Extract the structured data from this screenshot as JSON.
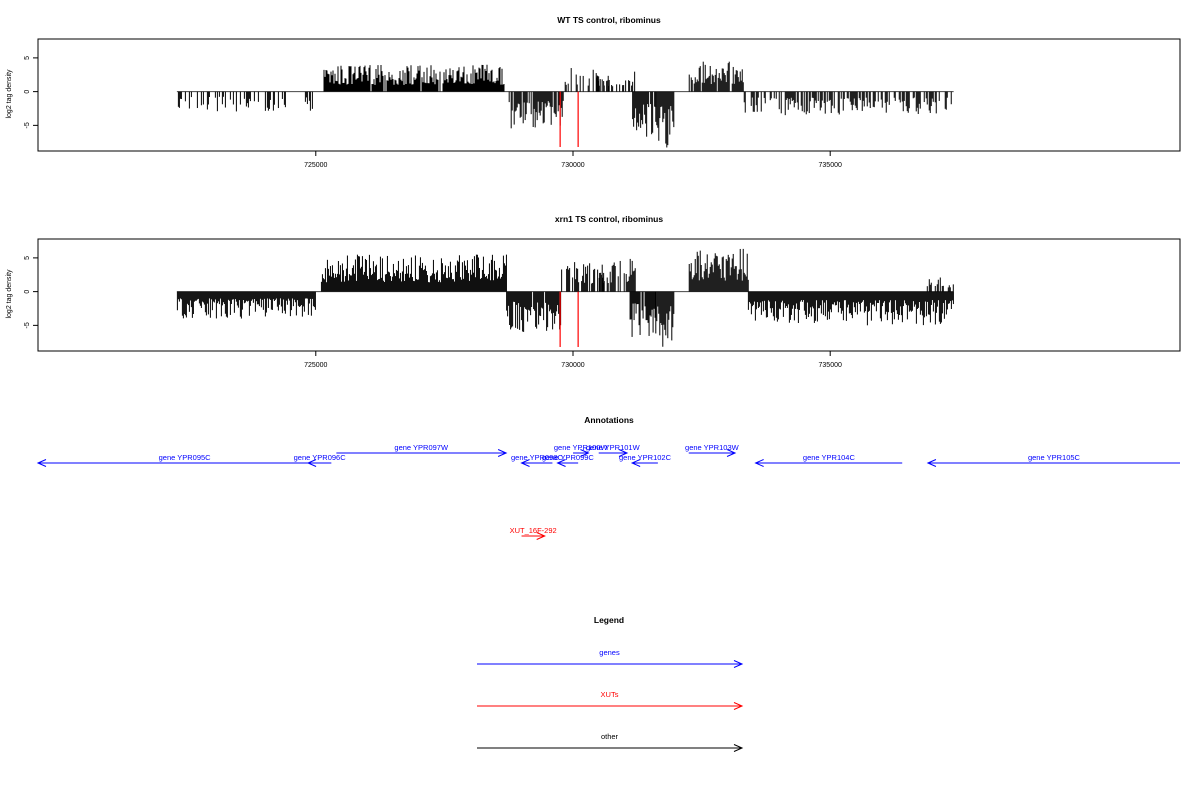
{
  "colors": {
    "gene": "#0000ff",
    "xut": "#ff0000",
    "other": "#000000",
    "marker": "#ff0000",
    "bars": "#000000"
  },
  "chart_data": [
    {
      "type": "bar",
      "title": "WT TS control, ribominus",
      "ylabel": "log2 tag density",
      "xlim": [
        719600,
        741800
      ],
      "ylim": [
        -8.8,
        7.8
      ],
      "xticks": [
        725000,
        730000,
        735000
      ],
      "xtick_labels": [
        "725000",
        "730000",
        "735000"
      ],
      "yticks": [
        -5,
        0,
        5
      ],
      "ytick_labels": [
        "-5",
        "0",
        "5"
      ],
      "markers": [
        729750,
        730100
      ],
      "segments": [
        {
          "x": [
            722300,
            725000
          ],
          "sign": -1,
          "max": 3,
          "density": 0.35
        },
        {
          "x": [
            725150,
            728650
          ],
          "sign": 1,
          "max": 4,
          "density": 0.95
        },
        {
          "x": [
            728750,
            729800
          ],
          "sign": -1,
          "max": 5.5,
          "density": 0.85
        },
        {
          "x": [
            729800,
            730700
          ],
          "sign": 1,
          "max": 3.5,
          "density": 0.5
        },
        {
          "x": [
            730450,
            731200
          ],
          "sign": 1,
          "max": 3.2,
          "density": 0.5
        },
        {
          "x": [
            731150,
            731600
          ],
          "sign": -1,
          "max": 7,
          "density": 0.95
        },
        {
          "x": [
            731600,
            731950
          ],
          "sign": -1,
          "max": 8.5,
          "density": 0.95
        },
        {
          "x": [
            732250,
            733300
          ],
          "sign": 1,
          "max": 4.5,
          "density": 0.95
        },
        {
          "x": [
            733300,
            737400
          ],
          "sign": -1,
          "max": 3.5,
          "density": 0.5
        }
      ]
    },
    {
      "type": "bar",
      "title": "xrn1 TS control, ribominus",
      "ylabel": "log2 tag density",
      "xlim": [
        719600,
        741800
      ],
      "ylim": [
        -8.8,
        7.8
      ],
      "xticks": [
        725000,
        730000,
        735000
      ],
      "xtick_labels": [
        "725000",
        "730000",
        "735000"
      ],
      "yticks": [
        -5,
        0,
        5
      ],
      "ytick_labels": [
        "-5",
        "0",
        "5"
      ],
      "markers": [
        729750,
        730100
      ],
      "segments": [
        {
          "x": [
            722300,
            725000
          ],
          "sign": -1,
          "max": 4,
          "density": 1.0
        },
        {
          "x": [
            725100,
            728700
          ],
          "sign": 1,
          "max": 5.5,
          "density": 1.0
        },
        {
          "x": [
            728700,
            729750
          ],
          "sign": -1,
          "max": 6,
          "density": 0.95
        },
        {
          "x": [
            729750,
            730600
          ],
          "sign": 1,
          "max": 4.5,
          "density": 0.7
        },
        {
          "x": [
            730500,
            731200
          ],
          "sign": 1,
          "max": 5,
          "density": 0.7
        },
        {
          "x": [
            731100,
            731600
          ],
          "sign": -1,
          "max": 7,
          "density": 0.95
        },
        {
          "x": [
            731600,
            731950
          ],
          "sign": -1,
          "max": 8.5,
          "density": 1.0
        },
        {
          "x": [
            732250,
            733400
          ],
          "sign": 1,
          "max": 6.5,
          "density": 1.0
        },
        {
          "x": [
            733400,
            737400
          ],
          "sign": -1,
          "max": 5,
          "density": 1.0
        },
        {
          "x": [
            736800,
            737400
          ],
          "sign": 1,
          "max": 2.5,
          "density": 0.4
        }
      ]
    }
  ],
  "annotations": {
    "title": "Annotations",
    "features": [
      {
        "label": "gene YPR095C",
        "kind": "gene",
        "start": 719600,
        "end": 725300,
        "strand": "-",
        "row": 1
      },
      {
        "label": "gene YPR096C",
        "kind": "gene",
        "start": 724850,
        "end": 725300,
        "strand": "-",
        "row": 1
      },
      {
        "label": "gene YPR097W",
        "kind": "gene",
        "start": 725400,
        "end": 728700,
        "strand": "+",
        "row": 0
      },
      {
        "label": "gene YPR098C",
        "kind": "gene",
        "start": 729000,
        "end": 729600,
        "strand": "-",
        "row": 1
      },
      {
        "label": "gene YPR099C",
        "kind": "gene",
        "start": 729700,
        "end": 730100,
        "strand": "-",
        "row": 1
      },
      {
        "label": "gene YPR100W",
        "kind": "gene",
        "start": 730000,
        "end": 730300,
        "strand": "+",
        "row": 0
      },
      {
        "label": "gene YPR101W",
        "kind": "gene",
        "start": 730500,
        "end": 731050,
        "strand": "+",
        "row": 0
      },
      {
        "label": "gene YPR102C",
        "kind": "gene",
        "start": 731150,
        "end": 731650,
        "strand": "-",
        "row": 1
      },
      {
        "label": "gene YPR103W",
        "kind": "gene",
        "start": 732250,
        "end": 733150,
        "strand": "+",
        "row": 0
      },
      {
        "label": "gene YPR104C",
        "kind": "gene",
        "start": 733550,
        "end": 736400,
        "strand": "-",
        "row": 1
      },
      {
        "label": "gene YPR105C",
        "kind": "gene",
        "start": 736900,
        "end": 741800,
        "strand": "-",
        "row": 1
      },
      {
        "label": "XUT_16F-292",
        "kind": "xut",
        "start": 729000,
        "end": 729450,
        "strand": "+",
        "row": 2
      }
    ]
  },
  "legend": {
    "title": "Legend",
    "items": [
      {
        "label": "genes",
        "kind": "gene"
      },
      {
        "label": "XUTs",
        "kind": "xut"
      },
      {
        "label": "other",
        "kind": "other"
      }
    ]
  }
}
